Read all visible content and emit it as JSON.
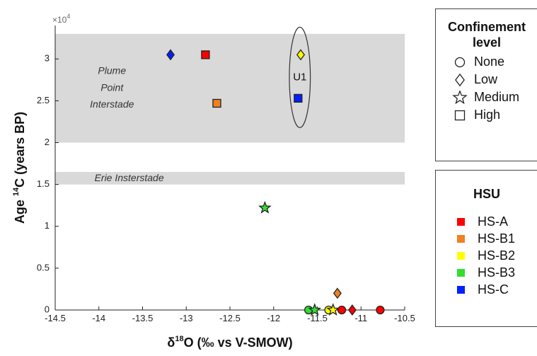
{
  "chart_data": {
    "type": "scatter",
    "title": "",
    "xlabel": "δ18O (‰ vs V-SMOW)",
    "xlabel_parts": {
      "delta": "δ",
      "sup": "18",
      "rest": "O (‰ vs V-SMOW)"
    },
    "ylabel": "Age 14C (years BP)",
    "ylabel_parts": {
      "pre": "Age ",
      "sup": "14",
      "rest": "C (years BP)"
    },
    "y_multiplier_label": "×10",
    "y_multiplier_exp": "4",
    "xlim": [
      -14.5,
      -10.5
    ],
    "ylim": [
      0,
      34000
    ],
    "xticks": [
      -14.5,
      -14,
      -13.5,
      -13,
      -12.5,
      -12,
      -11.5,
      -11,
      -10.5
    ],
    "xtick_labels": [
      "-14.5",
      "-14",
      "-13.5",
      "-13",
      "-12.5",
      "-12",
      "-11.5",
      "-11",
      "-10.5"
    ],
    "yticks": [
      0,
      5000,
      10000,
      15000,
      20000,
      25000,
      30000
    ],
    "ytick_labels": [
      "0",
      "0.5",
      "1",
      "1.5",
      "2",
      "2.5",
      "3"
    ],
    "grid": false,
    "bands": [
      {
        "label_lines": [
          "Plume",
          "Point",
          "Interstade"
        ],
        "y0": 20000,
        "y1": 33000,
        "label_x": -13.85,
        "label_y": [
          28500,
          26500,
          24500
        ]
      },
      {
        "label_lines": [
          "Erie Insterstade"
        ],
        "y0": 15000,
        "y1": 16500,
        "label_x": -14.05,
        "label_y": [
          15700
        ]
      }
    ],
    "annotation": {
      "text": "U1",
      "ellipse": {
        "cx": -11.7,
        "cy": 27800,
        "rx": 0.12,
        "ry": 6000
      }
    },
    "points": [
      {
        "x": -13.18,
        "y": 30500,
        "shape": "diamond",
        "hsu": "HS-C"
      },
      {
        "x": -12.78,
        "y": 30500,
        "shape": "square",
        "hsu": "HS-A"
      },
      {
        "x": -12.65,
        "y": 24700,
        "shape": "square",
        "hsu": "HS-B1"
      },
      {
        "x": -11.69,
        "y": 30500,
        "shape": "diamond",
        "hsu": "HS-B2"
      },
      {
        "x": -11.72,
        "y": 25300,
        "shape": "square",
        "hsu": "HS-C"
      },
      {
        "x": -12.1,
        "y": 12200,
        "shape": "star",
        "hsu": "HS-B3"
      },
      {
        "x": -11.27,
        "y": 2000,
        "shape": "diamond",
        "hsu": "HS-B1"
      },
      {
        "x": -11.6,
        "y": 0,
        "shape": "circle",
        "hsu": "HS-B3"
      },
      {
        "x": -11.53,
        "y": 0,
        "shape": "star",
        "hsu": "HS-B3"
      },
      {
        "x": -11.37,
        "y": 0,
        "shape": "circle",
        "hsu": "HS-B2"
      },
      {
        "x": -11.32,
        "y": 0,
        "shape": "star",
        "hsu": "HS-B2"
      },
      {
        "x": -11.22,
        "y": 0,
        "shape": "circle",
        "hsu": "HS-A"
      },
      {
        "x": -11.1,
        "y": 0,
        "shape": "diamond",
        "hsu": "HS-A"
      },
      {
        "x": -10.78,
        "y": 0,
        "shape": "circle",
        "hsu": "HS-A"
      }
    ]
  },
  "confinement_legend": {
    "title_lines": [
      "Confinement",
      "level"
    ],
    "items": [
      {
        "label": "None",
        "shape": "circle"
      },
      {
        "label": "Low",
        "shape": "diamond"
      },
      {
        "label": "Medium",
        "shape": "star"
      },
      {
        "label": "High",
        "shape": "square"
      }
    ]
  },
  "hsu_legend": {
    "title": "HSU",
    "items": [
      {
        "label": "HS-A",
        "color": "#ff0000"
      },
      {
        "label": "HS-B1",
        "color": "#f08020"
      },
      {
        "label": "HS-B2",
        "color": "#ffff00"
      },
      {
        "label": "HS-B3",
        "color": "#33dd33"
      },
      {
        "label": "HS-C",
        "color": "#0020ff"
      }
    ]
  },
  "colors": {
    "HS-A": "#ff0000",
    "HS-B1": "#f08020",
    "HS-B2": "#ffff00",
    "HS-B3": "#33dd33",
    "HS-C": "#0020ff",
    "band": "#d9d9d9"
  }
}
